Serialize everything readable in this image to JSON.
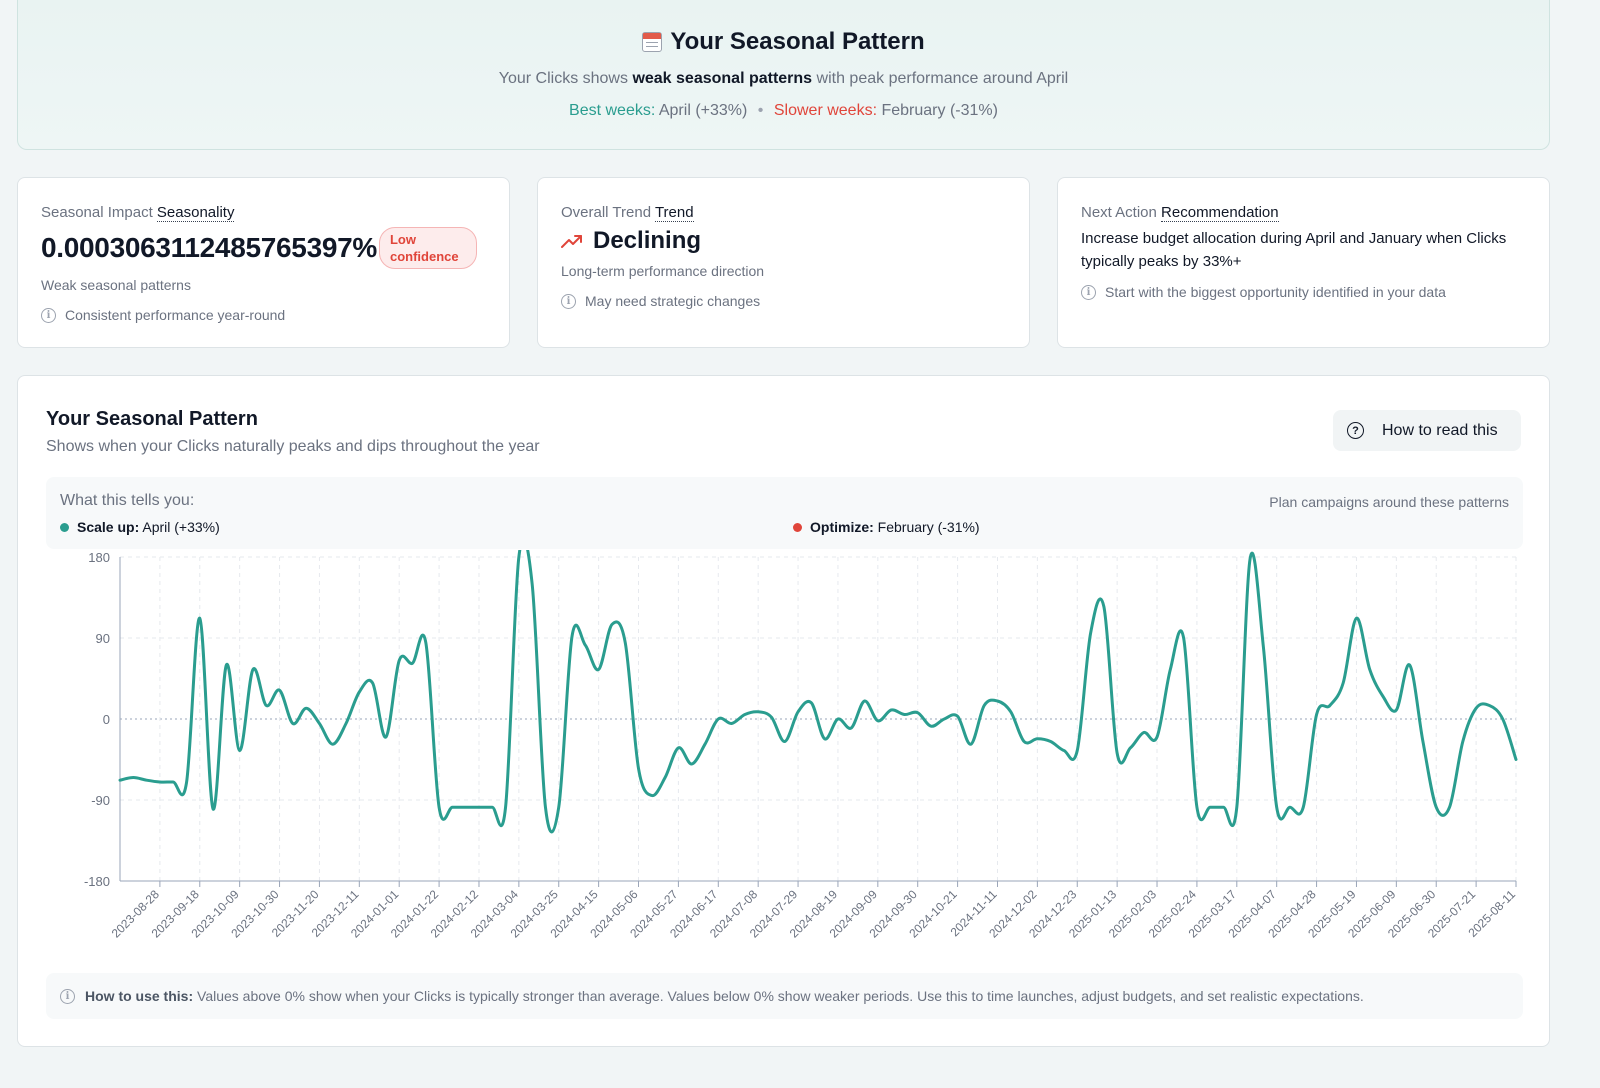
{
  "hero": {
    "icon": "calendar-icon",
    "title": "Your Seasonal Pattern",
    "subtitle_pre": "Your Clicks shows",
    "subtitle_bold": "weak seasonal patterns",
    "subtitle_post": "with peak performance around April",
    "best_label": "Best weeks:",
    "best_value": "April (+33%)",
    "separator": "•",
    "slow_label": "Slower weeks:",
    "slow_value": "February (-31%)"
  },
  "cards": {
    "seasonality": {
      "label": "Seasonal Impact",
      "label_link": "Seasonality",
      "value": "0.00030631124857653 97%",
      "value_text": "0.0003063112485765397%",
      "badge": "Low confidence",
      "sub": "Weak seasonal patterns",
      "note": "Consistent performance year-round"
    },
    "trend": {
      "label": "Overall Trend",
      "label_link": "Trend",
      "icon": "trend-arrow-icon",
      "value": "Declining",
      "sub": "Long-term performance direction",
      "note": "May need strategic changes"
    },
    "recommendation": {
      "label": "Next Action",
      "label_link": "Recommendation",
      "text": "Increase budget allocation during April and January when Clicks typically peaks by 33%+",
      "note": "Start with the biggest opportunity identified in your data"
    }
  },
  "panel": {
    "title": "Your Seasonal Pattern",
    "subtitle": "Shows when your Clicks naturally peaks and dips throughout the year",
    "how_button": "How to read this",
    "tells_head": "What this tells you:",
    "tells_right": "Plan campaigns around these patterns",
    "scale_label": "Scale up:",
    "scale_value": "April (+33%)",
    "opt_label": "Optimize:",
    "opt_value": "February (-31%)",
    "foot_label": "How to use this:",
    "foot_text": "Values above 0% show when your Clicks is typically stronger than average. Values below 0% show weaker periods. Use this to time launches, adjust budgets, and set realistic expectations."
  },
  "colors": {
    "line": "#2a9d8f",
    "positive": "#2a9d8f",
    "negative": "#e0453a"
  },
  "chart_data": {
    "type": "line",
    "ylim": [
      -180,
      180
    ],
    "yticks": [
      180,
      90,
      0,
      -90,
      -180
    ],
    "xticks": [
      "2023-08-28",
      "2023-09-18",
      "2023-10-09",
      "2023-10-30",
      "2023-11-20",
      "2023-12-11",
      "2024-01-01",
      "2024-01-22",
      "2024-02-12",
      "2024-03-04",
      "2024-03-25",
      "2024-04-15",
      "2024-05-06",
      "2024-05-27",
      "2024-06-17",
      "2024-07-08",
      "2024-07-29",
      "2024-08-19",
      "2024-09-09",
      "2024-09-30",
      "2024-10-21",
      "2024-11-11",
      "2024-12-02",
      "2024-12-23",
      "2025-01-13",
      "2025-02-03",
      "2025-02-24",
      "2025-03-17",
      "2025-04-07",
      "2025-04-28",
      "2025-05-19",
      "2025-06-09",
      "2025-06-30",
      "2025-07-21",
      "2025-08-11"
    ],
    "x_start": "2023-08-07",
    "x_end": "2025-08-11",
    "series": [
      {
        "values": [
          [
            "2023-08-07",
            -68
          ],
          [
            "2023-08-14",
            -65
          ],
          [
            "2023-08-21",
            -68
          ],
          [
            "2023-08-28",
            -70
          ],
          [
            "2023-09-04",
            -70
          ],
          [
            "2023-09-11",
            -71
          ],
          [
            "2023-09-18",
            112
          ],
          [
            "2023-09-25",
            -100
          ],
          [
            "2023-10-02",
            60
          ],
          [
            "2023-10-09",
            -35
          ],
          [
            "2023-10-16",
            55
          ],
          [
            "2023-10-23",
            15
          ],
          [
            "2023-10-30",
            32
          ],
          [
            "2023-11-06",
            -5
          ],
          [
            "2023-11-13",
            12
          ],
          [
            "2023-11-20",
            -5
          ],
          [
            "2023-11-27",
            -28
          ],
          [
            "2023-12-04",
            -5
          ],
          [
            "2023-12-11",
            30
          ],
          [
            "2023-12-18",
            40
          ],
          [
            "2023-12-25",
            -20
          ],
          [
            "2024-01-01",
            65
          ],
          [
            "2024-01-08",
            62
          ],
          [
            "2024-01-15",
            85
          ],
          [
            "2024-01-22",
            -98
          ],
          [
            "2024-01-29",
            -98
          ],
          [
            "2024-02-05",
            -98
          ],
          [
            "2024-02-12",
            -98
          ],
          [
            "2024-02-19",
            -98
          ],
          [
            "2024-02-26",
            -98
          ],
          [
            "2024-03-04",
            180
          ],
          [
            "2024-03-11",
            150
          ],
          [
            "2024-03-18",
            -98
          ],
          [
            "2024-03-25",
            -98
          ],
          [
            "2024-04-01",
            92
          ],
          [
            "2024-04-08",
            82
          ],
          [
            "2024-04-15",
            55
          ],
          [
            "2024-04-22",
            105
          ],
          [
            "2024-04-29",
            85
          ],
          [
            "2024-05-06",
            -55
          ],
          [
            "2024-05-13",
            -85
          ],
          [
            "2024-05-20",
            -65
          ],
          [
            "2024-05-27",
            -32
          ],
          [
            "2024-06-03",
            -50
          ],
          [
            "2024-06-10",
            -28
          ],
          [
            "2024-06-17",
            0
          ],
          [
            "2024-06-24",
            -5
          ],
          [
            "2024-07-01",
            5
          ],
          [
            "2024-07-08",
            8
          ],
          [
            "2024-07-15",
            2
          ],
          [
            "2024-07-22",
            -25
          ],
          [
            "2024-07-29",
            8
          ],
          [
            "2024-08-05",
            18
          ],
          [
            "2024-08-12",
            -22
          ],
          [
            "2024-08-19",
            0
          ],
          [
            "2024-08-26",
            -10
          ],
          [
            "2024-09-02",
            20
          ],
          [
            "2024-09-09",
            -2
          ],
          [
            "2024-09-16",
            10
          ],
          [
            "2024-09-23",
            5
          ],
          [
            "2024-09-30",
            7
          ],
          [
            "2024-10-07",
            -8
          ],
          [
            "2024-10-14",
            0
          ],
          [
            "2024-10-21",
            3
          ],
          [
            "2024-10-28",
            -28
          ],
          [
            "2024-11-04",
            15
          ],
          [
            "2024-11-11",
            20
          ],
          [
            "2024-11-18",
            8
          ],
          [
            "2024-11-25",
            -25
          ],
          [
            "2024-12-02",
            -22
          ],
          [
            "2024-12-09",
            -25
          ],
          [
            "2024-12-16",
            -35
          ],
          [
            "2024-12-23",
            -35
          ],
          [
            "2024-12-30",
            95
          ],
          [
            "2025-01-06",
            125
          ],
          [
            "2025-01-13",
            -38
          ],
          [
            "2025-01-20",
            -32
          ],
          [
            "2025-01-27",
            -15
          ],
          [
            "2025-02-03",
            -20
          ],
          [
            "2025-02-10",
            55
          ],
          [
            "2025-02-17",
            90
          ],
          [
            "2025-02-24",
            -98
          ],
          [
            "2025-03-03",
            -98
          ],
          [
            "2025-03-10",
            -98
          ],
          [
            "2025-03-17",
            -98
          ],
          [
            "2025-03-24",
            178
          ],
          [
            "2025-03-31",
            80
          ],
          [
            "2025-04-07",
            -98
          ],
          [
            "2025-04-14",
            -98
          ],
          [
            "2025-04-21",
            -98
          ],
          [
            "2025-04-28",
            5
          ],
          [
            "2025-05-05",
            15
          ],
          [
            "2025-05-12",
            40
          ],
          [
            "2025-05-19",
            112
          ],
          [
            "2025-05-26",
            55
          ],
          [
            "2025-06-02",
            25
          ],
          [
            "2025-06-09",
            10
          ],
          [
            "2025-06-16",
            60
          ],
          [
            "2025-06-23",
            -25
          ],
          [
            "2025-06-30",
            -98
          ],
          [
            "2025-07-07",
            -98
          ],
          [
            "2025-07-14",
            -25
          ],
          [
            "2025-07-21",
            12
          ],
          [
            "2025-07-28",
            15
          ],
          [
            "2025-08-04",
            0
          ],
          [
            "2025-08-11",
            -45
          ]
        ]
      }
    ]
  }
}
